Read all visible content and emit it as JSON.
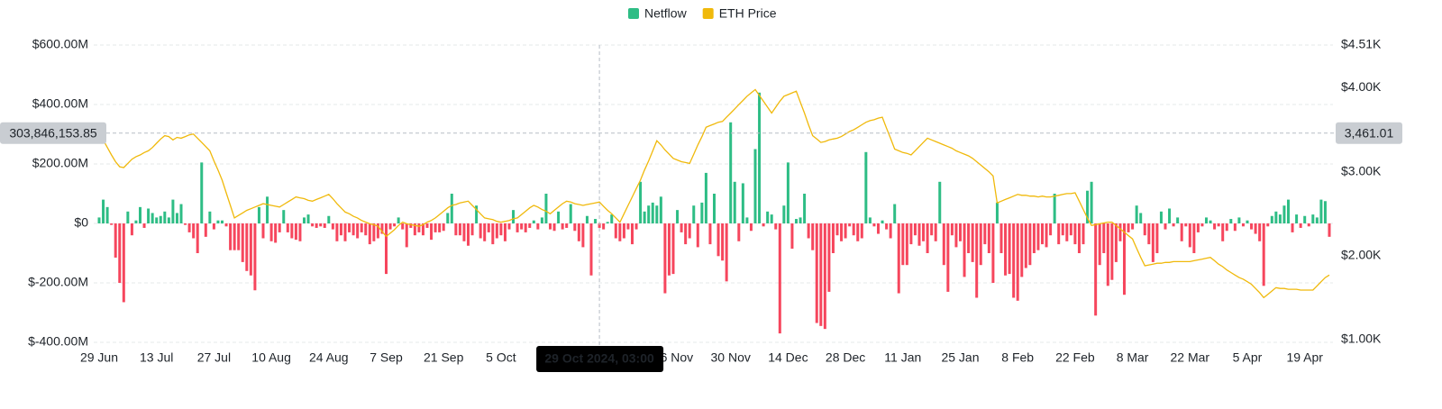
{
  "chart_data": {
    "type": "bar",
    "legend": "top",
    "categories": [
      "29 Jun",
      null,
      null,
      null,
      null,
      null,
      null,
      null,
      null,
      null,
      null,
      null,
      null,
      null,
      "13 Jul",
      null,
      null,
      null,
      null,
      null,
      null,
      null,
      null,
      null,
      null,
      null,
      null,
      null,
      "27 Jul",
      null,
      null,
      null,
      null,
      null,
      null,
      null,
      null,
      null,
      null,
      null,
      null,
      null,
      "10 Aug",
      null,
      null,
      null,
      null,
      null,
      null,
      null,
      null,
      null,
      null,
      null,
      null,
      null,
      "24 Aug",
      null,
      null,
      null,
      null,
      null,
      null,
      null,
      null,
      null,
      null,
      null,
      null,
      null,
      "7 Sep",
      null,
      null,
      null,
      null,
      null,
      null,
      null,
      null,
      null,
      null,
      null,
      null,
      null,
      "21 Sep",
      null,
      null,
      null,
      null,
      null,
      null,
      null,
      null,
      null,
      null,
      null,
      null,
      null,
      "5 Oct",
      null,
      null,
      null,
      null,
      null,
      null,
      null,
      null,
      null,
      null,
      null,
      null,
      null,
      null,
      null,
      null,
      null,
      null,
      null,
      null,
      null,
      null,
      null,
      null,
      null,
      null,
      null,
      null,
      null,
      null,
      null,
      null,
      null,
      null,
      null,
      null,
      null,
      null,
      null,
      null,
      null,
      "16 Nov",
      null,
      null,
      null,
      null,
      null,
      null,
      null,
      null,
      null,
      null,
      null,
      null,
      null,
      "30 Nov",
      null,
      null,
      null,
      null,
      null,
      null,
      null,
      null,
      null,
      null,
      null,
      null,
      null,
      "14 Dec",
      null,
      null,
      null,
      null,
      null,
      null,
      null,
      null,
      null,
      null,
      null,
      null,
      null,
      "28 Dec",
      null,
      null,
      null,
      null,
      null,
      null,
      null,
      null,
      null,
      null,
      null,
      null,
      null,
      "11 Jan",
      null,
      null,
      null,
      null,
      null,
      null,
      null,
      null,
      null,
      null,
      null,
      null,
      null,
      "25 Jan",
      null,
      null,
      null,
      null,
      null,
      null,
      null,
      null,
      null,
      null,
      null,
      null,
      null,
      "8 Feb",
      null,
      null,
      null,
      null,
      null,
      null,
      null,
      null,
      null,
      null,
      null,
      null,
      null,
      "22 Feb",
      null,
      null,
      null,
      null,
      null,
      null,
      null,
      null,
      null,
      null,
      null,
      null,
      null,
      "8 Mar",
      null,
      null,
      null,
      null,
      null,
      null,
      null,
      null,
      null,
      null,
      null,
      null,
      null,
      "22 Mar",
      null,
      null,
      null,
      null,
      null,
      null,
      null,
      null,
      null,
      null,
      null,
      null,
      null,
      "5 Apr",
      null,
      null,
      null,
      null,
      null,
      null,
      null,
      null,
      null,
      null,
      null,
      null,
      null,
      "19 Apr",
      null,
      null,
      null,
      null,
      null,
      null
    ],
    "series": [
      {
        "name": "Netflow",
        "type": "bar",
        "color": "#2ebd85",
        "negative_color": "#f6465d",
        "values": [
          20000000.0,
          80000000.0,
          55000000.0,
          -5000000.0,
          -115000000.0,
          -200000000.0,
          -265000000.0,
          40000000.0,
          -40000000.0,
          10000000.0,
          55000000.0,
          -15000000.0,
          50000000.0,
          35000000.0,
          20000000.0,
          25000000.0,
          40000000.0,
          20000000.0,
          80000000.0,
          35000000.0,
          65000000.0,
          -5000000.0,
          -30000000.0,
          -50000000.0,
          -100000000.0,
          205000000.0,
          -45000000.0,
          40000000.0,
          -20000000.0,
          10000000.0,
          10000000.0,
          -10000000.0,
          -90000000.0,
          -90000000.0,
          -90000000.0,
          -130000000.0,
          -160000000.0,
          -175000000.0,
          -225000000.0,
          55000000.0,
          -50000000.0,
          90000000.0,
          -60000000.0,
          -65000000.0,
          -30000000.0,
          45000000.0,
          -30000000.0,
          -50000000.0,
          -55000000.0,
          -60000000.0,
          20000000.0,
          30000000.0,
          -10000000.0,
          -15000000.0,
          -10000000.0,
          -15000000.0,
          25000000.0,
          -20000000.0,
          -60000000.0,
          -40000000.0,
          -60000000.0,
          -30000000.0,
          -40000000.0,
          -50000000.0,
          -30000000.0,
          -40000000.0,
          -70000000.0,
          -60000000.0,
          -50000000.0,
          -35000000.0,
          -170000000.0,
          -20000000.0,
          -10000000.0,
          20000000.0,
          -20000000.0,
          -80000000.0,
          -15000000.0,
          -40000000.0,
          -30000000.0,
          -40000000.0,
          -15000000.0,
          -55000000.0,
          -30000000.0,
          -30000000.0,
          -25000000.0,
          35000000.0,
          100000000.0,
          -40000000.0,
          -40000000.0,
          -60000000.0,
          -75000000.0,
          -40000000.0,
          60000000.0,
          -50000000.0,
          -60000000.0,
          -30000000.0,
          -70000000.0,
          -50000000.0,
          -40000000.0,
          -60000000.0,
          -20000000.0,
          45000000.0,
          -30000000.0,
          -20000000.0,
          -30000000.0,
          -15000000.0,
          10000000.0,
          -20000000.0,
          20000000.0,
          100000000.0,
          -20000000.0,
          -25000000.0,
          40000000.0,
          -20000000.0,
          -15000000.0,
          65000000.0,
          -25000000.0,
          -60000000.0,
          -80000000.0,
          25000000.0,
          -175000000.0,
          15000000.0,
          -15000000.0,
          -20000000.0,
          5000000.0,
          30000000.0,
          -50000000.0,
          -60000000.0,
          -50000000.0,
          -20000000.0,
          -70000000.0,
          -20000000.0,
          140000000.0,
          40000000.0,
          60000000.0,
          70000000.0,
          60000000.0,
          90000000.0,
          -235000000.0,
          -175000000.0,
          -170000000.0,
          45000000.0,
          -30000000.0,
          -70000000.0,
          -50000000.0,
          60000000.0,
          -80000000.0,
          70000000.0,
          170000000.0,
          -70000000.0,
          100000000.0,
          -110000000.0,
          -125000000.0,
          -195000000.0,
          340000000.0,
          140000000.0,
          -60000000.0,
          135000000.0,
          20000000.0,
          -25000000.0,
          250000000.0,
          440000000.0,
          -10000000.0,
          40000000.0,
          30000000.0,
          -20000000.0,
          -370000000.0,
          60000000.0,
          205000000.0,
          -85000000.0,
          15000000.0,
          20000000.0,
          100000000.0,
          -50000000.0,
          -90000000.0,
          -335000000.0,
          -345000000.0,
          -355000000.0,
          -230000000.0,
          -100000000.0,
          -40000000.0,
          -60000000.0,
          -50000000.0,
          -10000000.0,
          -40000000.0,
          -60000000.0,
          -50000000.0,
          240000000.0,
          20000000.0,
          -10000000.0,
          -35000000.0,
          10000000.0,
          -20000000.0,
          -50000000.0,
          65000000.0,
          -235000000.0,
          -140000000.0,
          -140000000.0,
          -70000000.0,
          -40000000.0,
          -75000000.0,
          -60000000.0,
          -100000000.0,
          -40000000.0,
          -60000000.0,
          140000000.0,
          -140000000.0,
          -230000000.0,
          -40000000.0,
          -80000000.0,
          -60000000.0,
          -180000000.0,
          -100000000.0,
          -130000000.0,
          -250000000.0,
          -140000000.0,
          -70000000.0,
          -100000000.0,
          -200000000.0,
          70000000.0,
          -100000000.0,
          -175000000.0,
          -170000000.0,
          -250000000.0,
          -260000000.0,
          -180000000.0,
          -150000000.0,
          -140000000.0,
          -100000000.0,
          -90000000.0,
          -70000000.0,
          -80000000.0,
          -40000000.0,
          100000000.0,
          -70000000.0,
          -40000000.0,
          -60000000.0,
          -40000000.0,
          -70000000.0,
          -100000000.0,
          -70000000.0,
          110000000.0,
          140000000.0,
          -310000000.0,
          -140000000.0,
          -100000000.0,
          -210000000.0,
          -190000000.0,
          -130000000.0,
          -60000000.0,
          -240000000.0,
          -30000000.0,
          -20000000.0,
          60000000.0,
          35000000.0,
          -40000000.0,
          -70000000.0,
          -130000000.0,
          -100000000.0,
          40000000.0,
          -20000000.0,
          50000000.0,
          -10000000.0,
          20000000.0,
          -60000000.0,
          -10000000.0,
          -80000000.0,
          -100000000.0,
          -30000000.0,
          -10000000.0,
          20000000.0,
          10000000.0,
          -20000000.0,
          -10000000.0,
          -60000000.0,
          -25000000.0,
          15000000.0,
          -25000000.0,
          20000000.0,
          -10000000.0,
          10000000.0,
          -20000000.0,
          -35000000.0,
          -60000000.0,
          -210000000.0,
          -10000000.0,
          25000000.0,
          40000000.0,
          30000000.0,
          60000000.0,
          80000000.0,
          -30000000.0,
          30000000.0,
          -15000000.0,
          25000000.0,
          -10000000.0,
          30000000.0,
          20000000.0,
          80000000.0,
          75000000.0,
          -45000000.0
        ]
      },
      {
        "name": "ETH Price",
        "type": "line",
        "axis": "y2",
        "color": "#f0b90b",
        "values": [
          3450,
          3380,
          3290,
          3200,
          3120,
          3060,
          3050,
          3100,
          3150,
          3180,
          3200,
          3230,
          3250,
          3290,
          3340,
          3390,
          3430,
          3420,
          3380,
          3410,
          3400,
          3420,
          3440,
          3450,
          3400,
          3350,
          3300,
          3250,
          3130,
          3020,
          2900,
          2750,
          2600,
          2450,
          2480,
          2510,
          2540,
          2560,
          2580,
          2600,
          2620,
          2610,
          2600,
          2590,
          2580,
          2610,
          2640,
          2670,
          2700,
          2690,
          2680,
          2660,
          2650,
          2670,
          2690,
          2710,
          2730,
          2680,
          2620,
          2570,
          2520,
          2500,
          2470,
          2450,
          2420,
          2400,
          2380,
          2370,
          2350,
          2290,
          2230,
          2270,
          2310,
          2360,
          2400,
          2380,
          2370,
          2360,
          2350,
          2370,
          2400,
          2420,
          2450,
          2490,
          2530,
          2570,
          2600,
          2610,
          2630,
          2640,
          2650,
          2600,
          2550,
          2500,
          2450,
          2440,
          2430,
          2410,
          2400,
          2410,
          2420,
          2440,
          2450,
          2490,
          2530,
          2570,
          2600,
          2580,
          2550,
          2530,
          2500,
          2540,
          2580,
          2620,
          2650,
          2640,
          2620,
          2610,
          2600,
          2610,
          2620,
          2630,
          2640,
          2590,
          2540,
          2500,
          2450,
          2400,
          2500,
          2600,
          2700,
          2800,
          2900,
          3020,
          3130,
          3250,
          3370,
          3320,
          3260,
          3210,
          3160,
          3140,
          3120,
          3110,
          3100,
          3210,
          3320,
          3420,
          3530,
          3550,
          3570,
          3590,
          3600,
          3650,
          3700,
          3750,
          3800,
          3850,
          3900,
          3940,
          3980,
          3910,
          3840,
          3770,
          3700,
          3770,
          3840,
          3900,
          3920,
          3940,
          3960,
          3830,
          3700,
          3560,
          3430,
          3390,
          3350,
          3360,
          3380,
          3390,
          3400,
          3420,
          3450,
          3480,
          3500,
          3530,
          3560,
          3590,
          3610,
          3620,
          3640,
          3650,
          3520,
          3400,
          3270,
          3250,
          3230,
          3220,
          3200,
          3250,
          3300,
          3350,
          3400,
          3380,
          3360,
          3340,
          3320,
          3300,
          3280,
          3250,
          3230,
          3210,
          3190,
          3160,
          3120,
          3080,
          3040,
          3000,
          2950,
          2630,
          2650,
          2670,
          2690,
          2710,
          2730,
          2720,
          2720,
          2710,
          2710,
          2700,
          2710,
          2700,
          2700,
          2710,
          2720,
          2730,
          2740,
          2740,
          2750,
          2650,
          2550,
          2450,
          2360,
          2370,
          2380,
          2390,
          2400,
          2400,
          2360,
          2320,
          2280,
          2240,
          2200,
          2090,
          1980,
          1880,
          1890,
          1900,
          1910,
          1910,
          1920,
          1920,
          1930,
          1930,
          1930,
          1930,
          1930,
          1940,
          1950,
          1960,
          1970,
          1980,
          1940,
          1900,
          1870,
          1830,
          1800,
          1770,
          1740,
          1720,
          1690,
          1660,
          1610,
          1560,
          1500,
          1540,
          1580,
          1620,
          1610,
          1610,
          1600,
          1600,
          1600,
          1590,
          1590,
          1590,
          1590,
          1640,
          1690,
          1740,
          1770
        ]
      }
    ],
    "ylim": [
      -400000000,
      600000000
    ],
    "yticks": [
      {
        "value": 600000000,
        "label": "$600.00M"
      },
      {
        "value": 400000000,
        "label": "$400.00M"
      },
      {
        "value": 200000000,
        "label": "$200.00M"
      },
      {
        "value": 0,
        "label": "$0"
      },
      {
        "value": -200000000,
        "label": "$-200.00M"
      },
      {
        "value": -400000000,
        "label": "$-400.00M"
      }
    ],
    "y2lim": [
      968,
      4510
    ],
    "y2ticks": [
      {
        "value": 4510,
        "label": "$4.51K"
      },
      {
        "value": 4000,
        "label": "$4.00K"
      },
      {
        "value": 3000,
        "label": "$3.00K"
      },
      {
        "value": 2000,
        "label": "$2.00K"
      },
      {
        "value": 1000,
        "label": "$1.00K"
      }
    ],
    "grid": true,
    "crosshair": {
      "label": "29 Oct 2024, 03:00",
      "y_value": {
        "value": 303846153.85,
        "label": "303,846,153.85"
      },
      "y2_value": {
        "value": 3461.01,
        "label": "3,461.01"
      }
    }
  }
}
